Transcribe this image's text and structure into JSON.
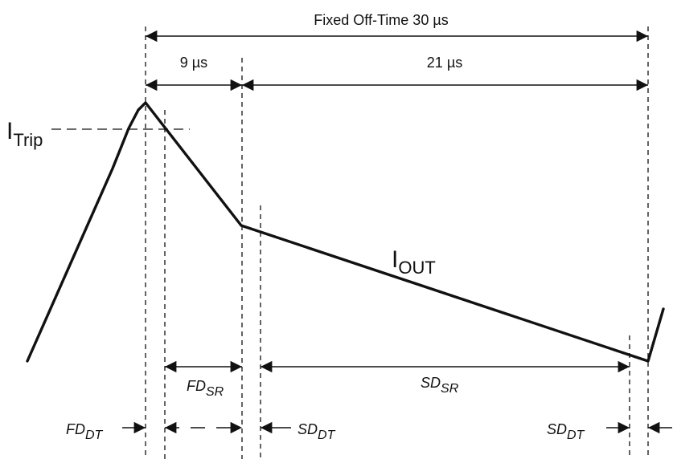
{
  "labels": {
    "fixed_off_time": "Fixed Off-Time 30 µs",
    "t9": "9 µs",
    "t21": "21 µs",
    "itrip_main": "I",
    "itrip_sub": "Trip",
    "iout_main": "I",
    "iout_sub": "OUT",
    "fd_sr_main": "FD",
    "fd_sr_sub": "SR",
    "sd_sr_main": "SD",
    "sd_sr_sub": "SR",
    "fd_dt_main": "FD",
    "fd_dt_sub": "DT",
    "sd_dt_left_main": "SD",
    "sd_dt_left_sub": "DT",
    "sd_dt_right_main": "SD",
    "sd_dt_right_sub": "DT"
  },
  "colors": {
    "ink": "#111111",
    "background": "#ffffff"
  }
}
